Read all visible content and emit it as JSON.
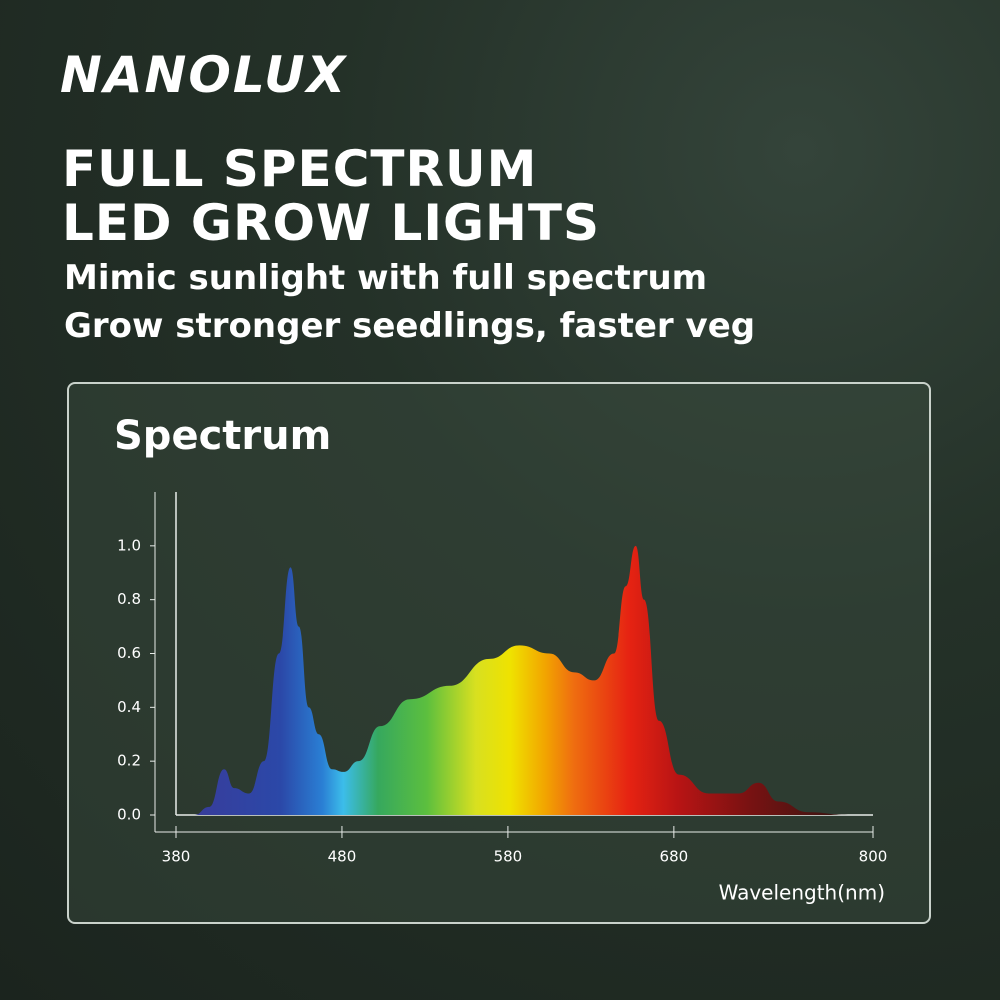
{
  "header": {
    "brand": "NANOLUX",
    "title_lines": [
      "FULL SPECTRUM",
      "LED GROW LIGHTS"
    ],
    "subtitle_lines": [
      "Mimic sunlight with full spectrum",
      "Grow stronger seedlings, faster veg"
    ]
  },
  "chart_data": {
    "type": "area",
    "title": "Spectrum",
    "x_label": "Wavelength(nm)",
    "x": [
      391,
      400,
      409,
      415,
      424,
      433,
      442,
      449,
      454,
      460,
      466,
      474,
      481,
      490,
      503,
      521,
      545,
      569,
      587,
      605,
      620,
      632,
      644,
      651,
      657,
      662,
      671,
      683,
      701,
      719,
      731,
      743,
      761,
      785
    ],
    "values": [
      0,
      0.03,
      0.17,
      0.1,
      0.08,
      0.2,
      0.6,
      0.92,
      0.7,
      0.4,
      0.3,
      0.17,
      0.16,
      0.2,
      0.33,
      0.43,
      0.48,
      0.58,
      0.63,
      0.6,
      0.53,
      0.5,
      0.6,
      0.85,
      1.0,
      0.8,
      0.35,
      0.15,
      0.08,
      0.08,
      0.12,
      0.05,
      0.01,
      0
    ],
    "xlim": [
      380,
      800
    ],
    "xticks": [
      380,
      480,
      580,
      680,
      800
    ],
    "ylim": [
      0,
      1.2
    ],
    "yticks": [
      {
        "value": 0,
        "label": "0.0"
      },
      0.2,
      0.4,
      0.6,
      0.8,
      {
        "value": 1,
        "label": "1.0"
      }
    ]
  }
}
